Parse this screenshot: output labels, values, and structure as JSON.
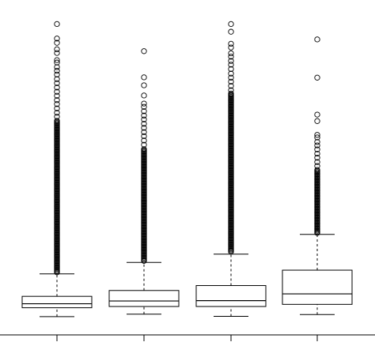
{
  "chart_data": {
    "type": "box",
    "title": "",
    "xlabel": "",
    "ylabel": "",
    "categories": [
      "",
      "",
      "",
      ""
    ],
    "ylim": [
      0,
      100
    ],
    "y_axis_visible": false,
    "grid": false,
    "legend": "none",
    "boxes": [
      {
        "whisker_low": 1.3,
        "q1": 4.2,
        "median": 5.5,
        "q3": 7.9,
        "whisker_high": 15.2,
        "outliers_dense_from": 15.7,
        "outliers_dense_to": 65.0,
        "outliers": [
          66.2,
          67.5,
          68.9,
          70.3,
          71.6,
          73.0,
          74.3,
          75.7,
          77.1,
          78.4,
          79.9,
          81.1,
          82.3,
          83.8,
          84.6,
          86.9,
          88.1,
          90.2,
          91.6,
          96.3
        ]
      },
      {
        "whisker_low": 2.1,
        "q1": 4.6,
        "median": 6.4,
        "q3": 9.8,
        "whisker_high": 18.9,
        "outliers_dense_from": 19.4,
        "outliers_dense_to": 56.0,
        "outliers": [
          57.1,
          58.5,
          59.9,
          61.2,
          62.6,
          63.9,
          65.3,
          66.6,
          68.0,
          69.4,
          70.5,
          73.1,
          76.4,
          79.0,
          87.5
        ]
      },
      {
        "whisker_low": 1.4,
        "q1": 4.6,
        "median": 6.5,
        "q3": 11.4,
        "whisker_high": 21.6,
        "outliers_dense_from": 22.4,
        "outliers_dense_to": 74.0,
        "outliers": [
          74.8,
          76.2,
          77.6,
          78.9,
          80.2,
          81.7,
          83.1,
          84.3,
          85.7,
          86.8,
          88.7,
          89.9,
          93.8,
          96.3
        ]
      },
      {
        "whisker_low": 2.0,
        "q1": 5.3,
        "median": 8.7,
        "q3": 16.4,
        "whisker_high": 28.0,
        "outliers_dense_from": 28.5,
        "outliers_dense_to": 49.0,
        "outliers": [
          50.2,
          51.5,
          52.9,
          54.2,
          55.6,
          56.9,
          58.0,
          59.5,
          60.3,
          64.8,
          66.9,
          78.9,
          91.3
        ]
      }
    ]
  },
  "style": {
    "stroke": "#000000",
    "background": "#ffffff"
  }
}
